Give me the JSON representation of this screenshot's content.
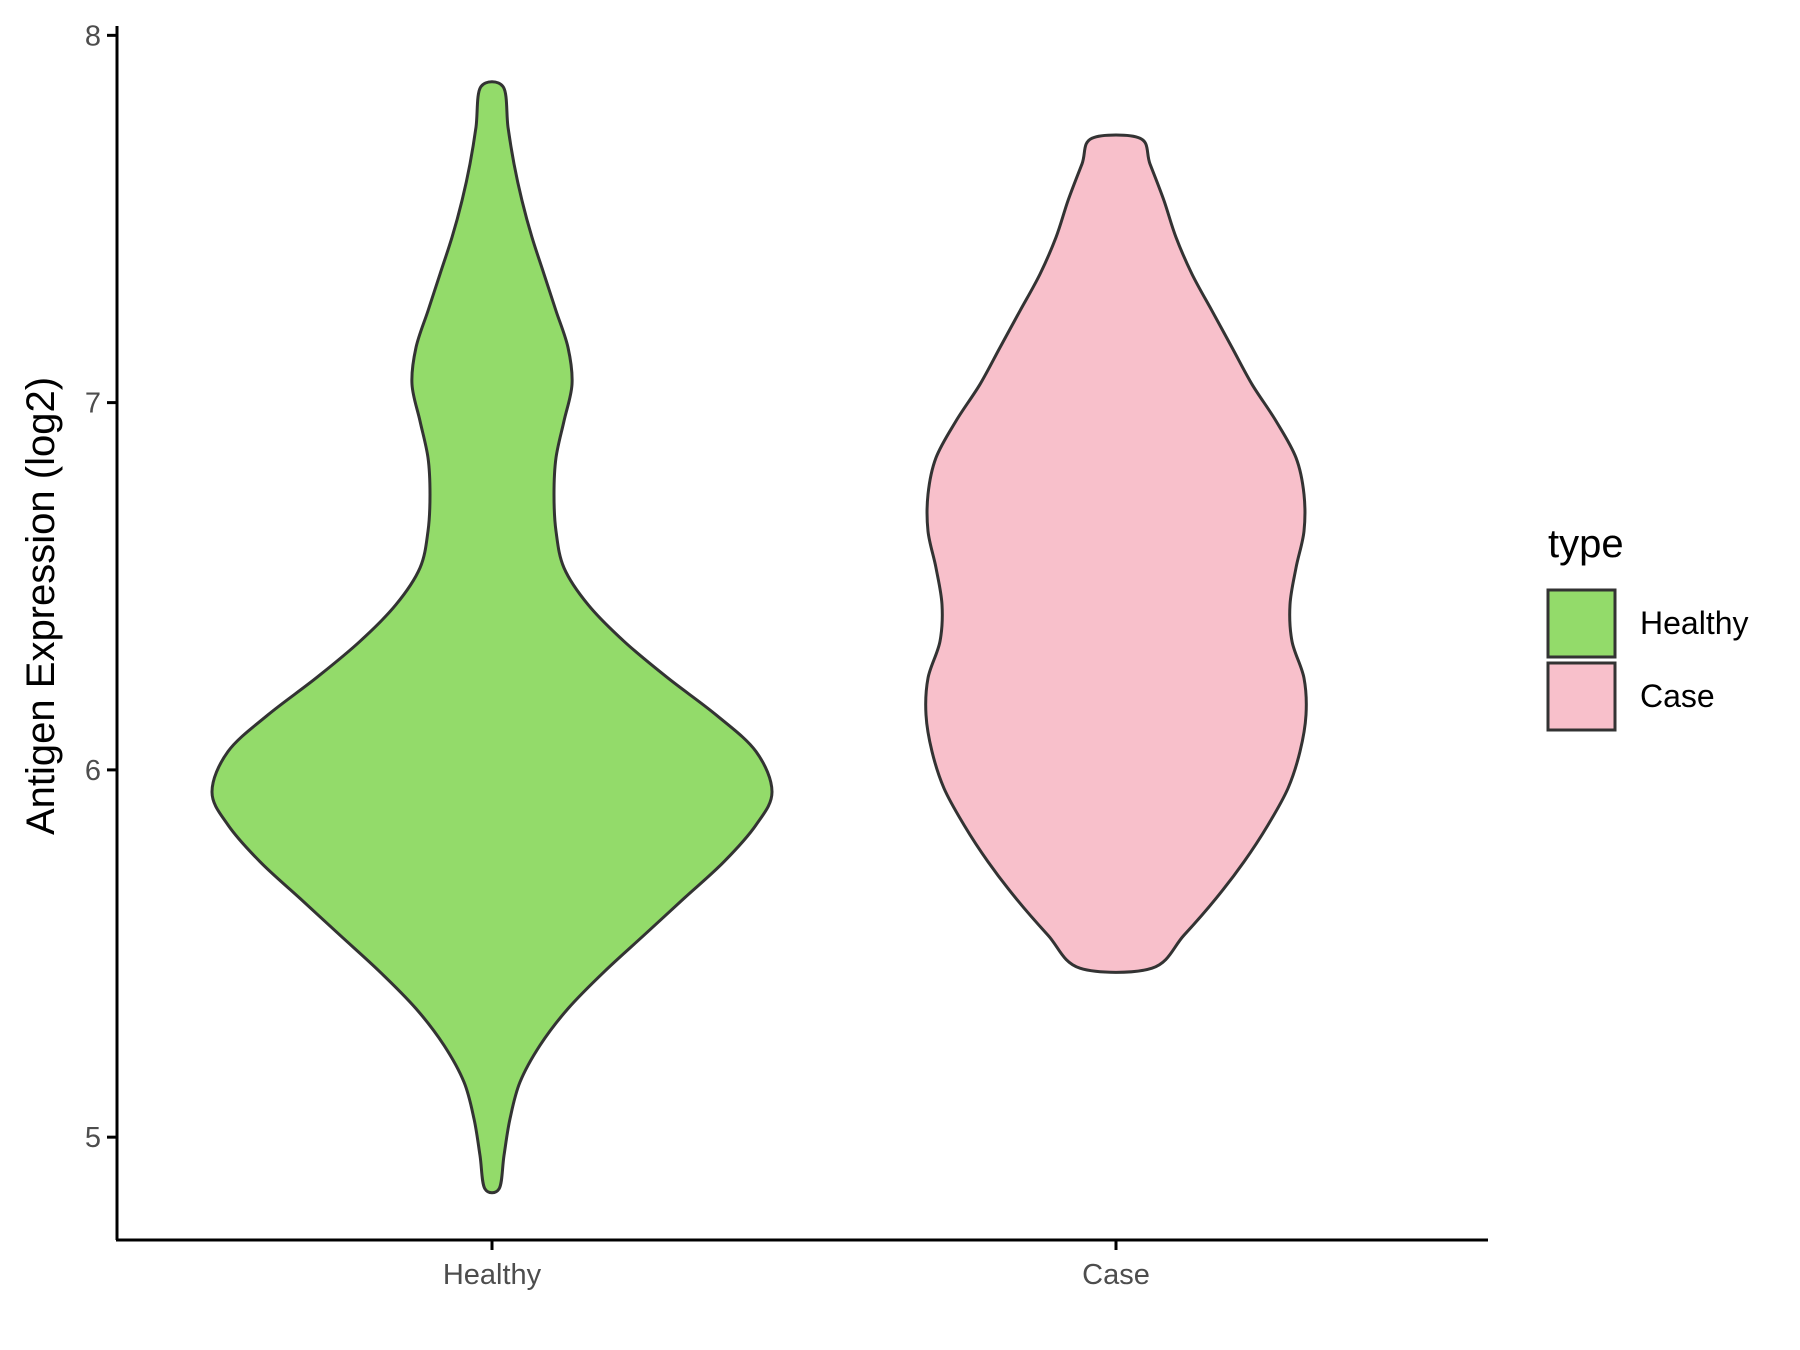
{
  "chart_data": {
    "type": "violin",
    "title": "",
    "xlabel": "",
    "ylabel": "Antigen Expression (log2)",
    "ylim": [
      4.72,
      8.02
    ],
    "yticks": [
      5,
      6,
      7,
      8
    ],
    "categories": [
      "Healthy",
      "Case"
    ],
    "colors": {
      "Healthy": "#93DB6A",
      "Case": "#F8C0CB"
    },
    "outline_color": "#333333",
    "grid": false,
    "legend": {
      "title": "type",
      "position": "right",
      "entries": [
        "Healthy",
        "Case"
      ]
    },
    "series": [
      {
        "name": "Healthy",
        "min": 4.86,
        "max": 7.86,
        "density": [
          [
            4.86,
            0.018
          ],
          [
            4.95,
            0.03
          ],
          [
            5.05,
            0.045
          ],
          [
            5.15,
            0.07
          ],
          [
            5.25,
            0.12
          ],
          [
            5.35,
            0.19
          ],
          [
            5.45,
            0.28
          ],
          [
            5.55,
            0.38
          ],
          [
            5.65,
            0.48
          ],
          [
            5.75,
            0.58
          ],
          [
            5.85,
            0.66
          ],
          [
            5.94,
            0.7
          ],
          [
            6.05,
            0.66
          ],
          [
            6.15,
            0.56
          ],
          [
            6.25,
            0.44
          ],
          [
            6.35,
            0.33
          ],
          [
            6.45,
            0.24
          ],
          [
            6.55,
            0.18
          ],
          [
            6.65,
            0.16
          ],
          [
            6.75,
            0.155
          ],
          [
            6.85,
            0.16
          ],
          [
            6.95,
            0.18
          ],
          [
            7.05,
            0.2
          ],
          [
            7.15,
            0.19
          ],
          [
            7.25,
            0.16
          ],
          [
            7.35,
            0.13
          ],
          [
            7.45,
            0.1
          ],
          [
            7.55,
            0.075
          ],
          [
            7.65,
            0.055
          ],
          [
            7.75,
            0.04
          ],
          [
            7.86,
            0.028
          ]
        ]
      },
      {
        "name": "Case",
        "min": 5.46,
        "max": 7.72,
        "density": [
          [
            5.46,
            0.09
          ],
          [
            5.55,
            0.17
          ],
          [
            5.65,
            0.25
          ],
          [
            5.75,
            0.32
          ],
          [
            5.85,
            0.38
          ],
          [
            5.95,
            0.43
          ],
          [
            6.05,
            0.46
          ],
          [
            6.15,
            0.475
          ],
          [
            6.25,
            0.47
          ],
          [
            6.35,
            0.44
          ],
          [
            6.45,
            0.435
          ],
          [
            6.55,
            0.45
          ],
          [
            6.65,
            0.47
          ],
          [
            6.75,
            0.47
          ],
          [
            6.85,
            0.45
          ],
          [
            6.95,
            0.4
          ],
          [
            7.05,
            0.34
          ],
          [
            7.15,
            0.29
          ],
          [
            7.25,
            0.24
          ],
          [
            7.35,
            0.19
          ],
          [
            7.45,
            0.15
          ],
          [
            7.55,
            0.12
          ],
          [
            7.65,
            0.085
          ],
          [
            7.72,
            0.06
          ]
        ]
      }
    ]
  }
}
